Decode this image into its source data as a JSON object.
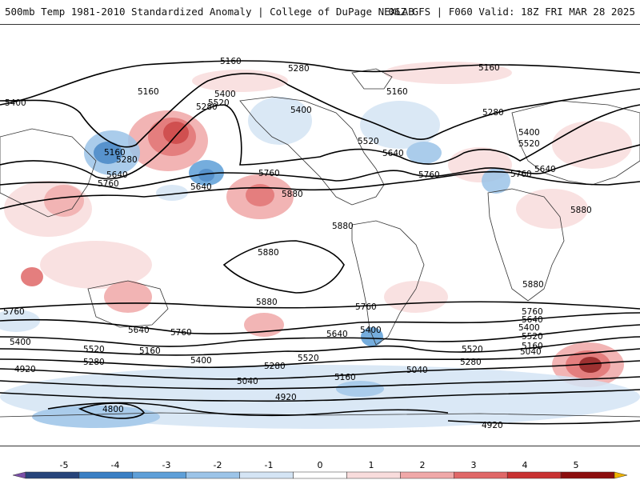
{
  "header": {
    "title": "500mb Temp 1981-2010 Standardized Anomaly | College of DuPage NEXLAB",
    "run_info": "06Z GFS | F060 Valid: 18Z FRI MAR 28 2025"
  },
  "contour_labels": [
    "5160",
    "5280",
    "5400",
    "5520",
    "5640",
    "5760",
    "5880",
    "5040",
    "4920",
    "4800"
  ],
  "colorbar": {
    "ticks": [
      "-5",
      "-4",
      "-3",
      "-2",
      "-1",
      "0",
      "1",
      "2",
      "3",
      "4",
      "5"
    ],
    "colors": [
      "#7b4fa8",
      "#27447a",
      "#3a7fc4",
      "#5e9fd8",
      "#9cc4e8",
      "#d4e4f4",
      "#ffffff",
      "#f8dcdc",
      "#f0a8a8",
      "#e06868",
      "#c83232",
      "#8c0e0e",
      "#f0b400"
    ]
  }
}
